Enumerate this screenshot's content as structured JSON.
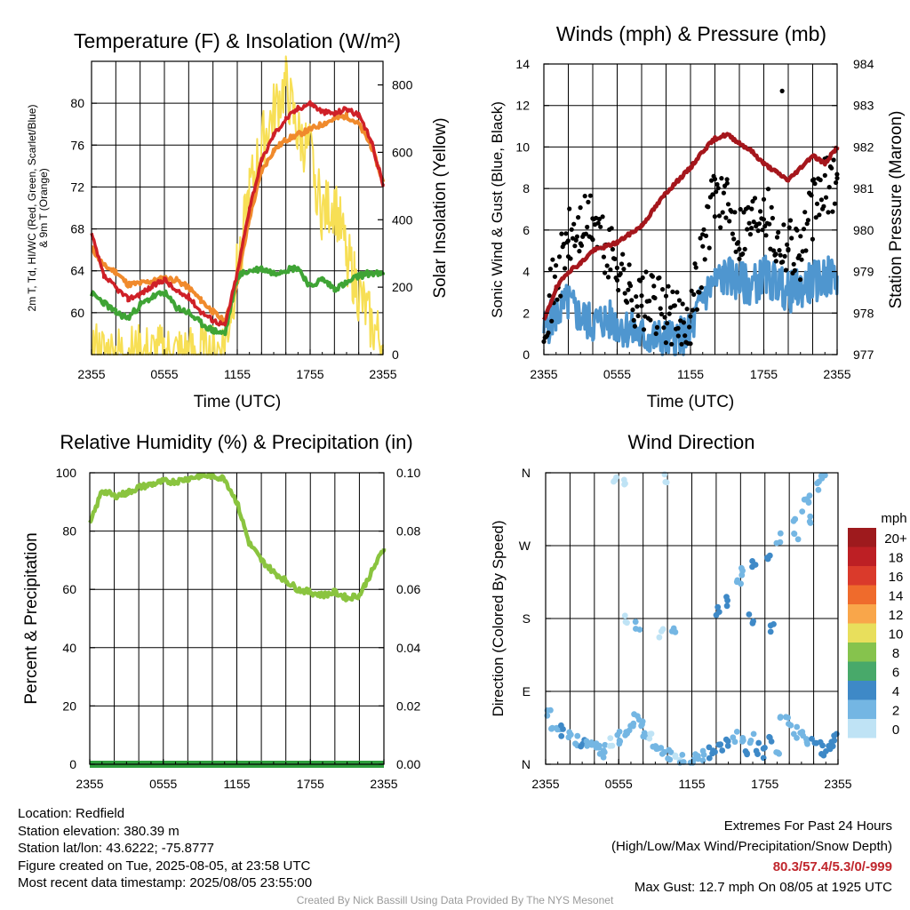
{
  "colors": {
    "temp": "#cf2027",
    "dew": "#3fa435",
    "temp9m": "#f08a2c",
    "solar": "#f7df55",
    "wind": "#4f96cf",
    "gust": "#000000",
    "pressure": "#a5161c",
    "rh": "#8ac43f",
    "precip": "#2f9e3d",
    "footer_extreme": "#c0272d"
  },
  "panels": {
    "temperature": {
      "title": "Temperature (F) & Insolation (W/m²)",
      "ylabel_left_line1": "2m T, Td, HI/WC (Red, Green, Scarlet/Blue)",
      "ylabel_left_line2": "& 9m T (Orange)",
      "ylabel_right": "Solar Insolation (Yellow)",
      "xlabel": "Time (UTC)"
    },
    "winds": {
      "title": "Winds (mph) & Pressure (mb)",
      "ylabel_left": "Sonic Wind & Gust (Blue, Black)",
      "ylabel_right": "Station Pressure (Maroon)",
      "xlabel": "Time (UTC)"
    },
    "humidity": {
      "title": "Relative Humidity (%) & Precipitation (in)",
      "ylabel_left": "Percent & Precipitation"
    },
    "direction": {
      "title": "Wind Direction",
      "ylabel_left": "Direction (Colored By Speed)",
      "legend_title": "mph"
    }
  },
  "chart_data": [
    {
      "type": "line",
      "id": "temperature",
      "x_ticks": [
        "2355",
        "0555",
        "1155",
        "1755",
        "2355"
      ],
      "x_hours": [
        0,
        6,
        12,
        18,
        24
      ],
      "ylim": [
        56,
        84
      ],
      "y_ticks": [
        60,
        64,
        68,
        72,
        76,
        80
      ],
      "y2lim": [
        0,
        870
      ],
      "y2_ticks": [
        0,
        200,
        400,
        600,
        800
      ],
      "series": [
        {
          "key": "temp",
          "x": [
            0,
            1,
            2,
            3,
            4,
            5,
            6,
            7,
            8,
            9,
            10,
            11,
            12,
            13,
            14,
            15,
            16,
            17,
            18,
            19,
            20,
            21,
            22,
            23,
            24
          ],
          "values": [
            67.5,
            63.5,
            62.4,
            61.3,
            61.8,
            62.5,
            63.2,
            62.0,
            61.5,
            60.1,
            59.3,
            58.8,
            63.8,
            70.0,
            74.5,
            77.0,
            78.5,
            79.5,
            80.0,
            79.2,
            79.0,
            79.5,
            78.8,
            76.5,
            72.3
          ]
        },
        {
          "key": "temp9m",
          "x": [
            0,
            1,
            2,
            3,
            4,
            5,
            6,
            7,
            8,
            9,
            10,
            11,
            12,
            13,
            14,
            15,
            16,
            17,
            18,
            19,
            20,
            21,
            22,
            23,
            24
          ],
          "values": [
            66.2,
            64.5,
            63.9,
            62.7,
            62.8,
            63.0,
            63.3,
            63.1,
            62.4,
            61.2,
            60.1,
            59.1,
            63.0,
            69.0,
            73.5,
            75.5,
            76.5,
            77.0,
            77.5,
            78.0,
            78.5,
            78.8,
            78.0,
            76.0,
            72.5
          ]
        },
        {
          "key": "dew",
          "x": [
            0,
            1,
            2,
            3,
            4,
            5,
            6,
            7,
            8,
            9,
            10,
            11,
            12,
            13,
            14,
            15,
            16,
            17,
            18,
            19,
            20,
            21,
            22,
            23,
            24
          ],
          "values": [
            61.8,
            61.0,
            60.0,
            59.5,
            60.7,
            61.5,
            61.9,
            60.5,
            60.0,
            59.0,
            58.3,
            58.0,
            63.5,
            64.0,
            64.2,
            63.8,
            64.1,
            64.3,
            62.5,
            63.2,
            62.3,
            62.8,
            63.5,
            63.8,
            63.6
          ]
        },
        {
          "key": "solar",
          "x": [
            0,
            1,
            2,
            3,
            4,
            5,
            6,
            7,
            8,
            9,
            10,
            11,
            12,
            13,
            14,
            15,
            16,
            17,
            18,
            19,
            20,
            21,
            22,
            23,
            24
          ],
          "values": [
            20,
            0,
            0,
            0,
            0,
            0,
            0,
            0,
            0,
            0,
            0,
            30,
            250,
            480,
            620,
            720,
            800,
            650,
            600,
            420,
            450,
            300,
            180,
            90,
            30
          ]
        }
      ]
    },
    {
      "type": "scatter",
      "id": "winds",
      "x_ticks": [
        "2355",
        "0555",
        "1155",
        "1755",
        "2355"
      ],
      "x_hours": [
        0,
        6,
        12,
        18,
        24
      ],
      "ylim": [
        0,
        14
      ],
      "y_ticks": [
        0,
        2,
        4,
        6,
        8,
        10,
        12,
        14
      ],
      "y2lim": [
        977,
        984
      ],
      "y2_ticks": [
        977,
        978,
        979,
        980,
        981,
        982,
        983,
        984
      ],
      "series": [
        {
          "key": "wind",
          "x": [
            0,
            1,
            2,
            3,
            4,
            5,
            6,
            7,
            8,
            9,
            10,
            11,
            12,
            13,
            14,
            15,
            16,
            17,
            18,
            19,
            20,
            21,
            22,
            23,
            24
          ],
          "values": [
            1.2,
            2.0,
            2.5,
            1.8,
            1.5,
            1.7,
            1.5,
            1.2,
            0.9,
            0.8,
            0.7,
            0.8,
            1.0,
            2.8,
            3.5,
            3.8,
            3.5,
            3.3,
            3.8,
            3.5,
            3.0,
            3.2,
            3.5,
            3.7,
            3.8
          ]
        },
        {
          "key": "gust",
          "x": [
            0,
            1,
            2,
            3,
            4,
            5,
            6,
            7,
            8,
            9,
            10,
            11,
            12,
            13,
            14,
            15,
            16,
            17,
            18,
            19,
            20,
            21,
            22,
            23,
            24
          ],
          "values": [
            2.0,
            3.5,
            5.5,
            6.0,
            6.5,
            5.0,
            4.5,
            3.0,
            2.5,
            2.5,
            2.0,
            1.5,
            2.0,
            5.0,
            8.0,
            7.0,
            6.0,
            6.5,
            7.5,
            5.5,
            5.5,
            5.0,
            7.0,
            8.0,
            8.5
          ]
        },
        {
          "key": "pressure",
          "x": [
            0,
            1,
            2,
            3,
            4,
            5,
            6,
            7,
            8,
            9,
            10,
            11,
            12,
            13,
            14,
            15,
            16,
            17,
            18,
            19,
            20,
            21,
            22,
            23,
            24
          ],
          "values": [
            977.8,
            978.6,
            979.0,
            979.2,
            979.5,
            979.6,
            979.7,
            979.9,
            980.1,
            980.5,
            980.9,
            981.2,
            981.5,
            981.9,
            982.2,
            982.3,
            982.1,
            981.9,
            981.6,
            981.4,
            981.2,
            981.5,
            981.8,
            981.6,
            982.0
          ]
        }
      ],
      "max_gust": 12.7
    },
    {
      "type": "line",
      "id": "humidity",
      "x_ticks": [
        "2355",
        "0555",
        "1155",
        "1755",
        "2355"
      ],
      "x_hours": [
        0,
        6,
        12,
        18,
        24
      ],
      "ylim": [
        0,
        100
      ],
      "y_ticks": [
        0,
        20,
        40,
        60,
        80,
        100
      ],
      "y2lim": [
        0,
        0.1
      ],
      "y2_ticks": [
        "0.00",
        "0.02",
        "0.04",
        "0.06",
        "0.08",
        "0.10"
      ],
      "series": [
        {
          "key": "rh",
          "x": [
            0,
            1,
            2,
            3,
            4,
            5,
            6,
            7,
            8,
            9,
            10,
            11,
            12,
            13,
            14,
            15,
            16,
            17,
            18,
            19,
            20,
            21,
            22,
            23,
            24
          ],
          "values": [
            82,
            94,
            92,
            93,
            95,
            96,
            97,
            97,
            98,
            99,
            99,
            98,
            90,
            76,
            70,
            66,
            63,
            60,
            59,
            58,
            59,
            57,
            58,
            66,
            74
          ]
        },
        {
          "key": "precip",
          "x": [
            0,
            24
          ],
          "values": [
            0,
            0
          ]
        }
      ]
    },
    {
      "type": "scatter",
      "id": "direction",
      "x_ticks": [
        "2355",
        "0555",
        "1155",
        "1755",
        "2355"
      ],
      "x_hours": [
        0,
        6,
        12,
        18,
        24
      ],
      "ylim": [
        0,
        360
      ],
      "y_ticks": [
        "N",
        "E",
        "S",
        "W",
        "N"
      ],
      "legend_labels": [
        "20+",
        "18",
        "16",
        "14",
        "12",
        "10",
        "8",
        "6",
        "4",
        "2",
        "0"
      ],
      "legend_colors": [
        "#9e1a1d",
        "#bd1f24",
        "#da3a2b",
        "#ef6b2c",
        "#f9a64a",
        "#e8df5c",
        "#86c34d",
        "#48a96a",
        "#3e89c7",
        "#74b6e3",
        "#bfe3f5"
      ],
      "points_x": [
        0.2,
        0.6,
        1,
        1.5,
        2,
        2.5,
        3,
        3.5,
        4,
        4.3,
        4.6,
        5,
        5.5,
        6,
        6.3,
        6.7,
        7,
        7.5,
        7.8,
        8.2,
        8.7,
        9,
        9.3,
        9.8,
        10.2,
        10.8,
        11.2,
        12,
        12.5,
        13,
        13.5,
        14,
        14.5,
        15,
        15.5,
        16,
        16.5,
        17,
        17.5,
        18,
        18.5,
        19,
        19.5,
        20,
        20.5,
        21,
        21.5,
        22,
        22.5,
        23,
        23.5,
        23.8,
        6.5,
        7.5,
        9.5,
        10.5,
        15.8,
        16.3,
        17.2,
        18.2,
        19.2,
        20.3,
        21.2,
        21.8,
        22.3,
        22.8,
        5.8,
        6.6,
        10,
        14.2,
        14.8,
        16.8,
        18.6,
        20.6,
        21.6
      ],
      "points_deg": [
        60,
        50,
        48,
        40,
        35,
        30,
        25,
        22,
        20,
        18,
        15,
        20,
        25,
        30,
        35,
        40,
        45,
        55,
        50,
        40,
        30,
        25,
        20,
        15,
        10,
        8,
        5,
        5,
        10,
        12,
        15,
        20,
        25,
        30,
        35,
        25,
        20,
        30,
        20,
        15,
        30,
        20,
        60,
        50,
        40,
        35,
        30,
        25,
        20,
        15,
        20,
        30,
        180,
        170,
        160,
        160,
        230,
        240,
        250,
        260,
        280,
        300,
        320,
        330,
        345,
        355,
        355,
        345,
        355,
        190,
        200,
        180,
        170,
        280,
        300
      ],
      "points_speed": [
        1,
        2,
        2,
        3,
        2,
        2,
        3,
        2,
        1,
        1,
        2,
        1,
        0,
        1,
        2,
        1,
        2,
        2,
        1,
        1,
        0,
        1,
        1,
        2,
        1,
        0,
        1,
        1,
        2,
        2,
        3,
        3,
        3,
        3,
        2,
        2,
        3,
        2,
        3,
        3,
        3,
        2,
        1,
        2,
        1,
        2,
        2,
        3,
        3,
        3,
        3,
        3,
        0,
        1,
        0,
        1,
        2,
        2,
        3,
        3,
        2,
        2,
        1,
        1,
        1,
        2,
        0,
        0,
        0,
        3,
        4,
        4,
        3,
        2,
        2
      ]
    }
  ],
  "footer": {
    "location": "Location: Redfield",
    "elevation": "Station elevation: 380.39 m",
    "latlon": "Station lat/lon: 43.6222; -75.8777",
    "created": "Figure created on Tue, 2025-08-05, at 23:58 UTC",
    "recent": "Most recent data timestamp: 2025/08/05 23:55:00",
    "extremes_title": "Extremes For Past 24 Hours",
    "extremes_subtitle": "(High/Low/Max Wind/Precipitation/Snow Depth)",
    "extremes_values": "80.3/57.4/5.3/0/-999",
    "max_gust": "Max Gust: 12.7 mph On 08/05 at 1925 UTC",
    "credit": "Created By Nick Bassill Using Data Provided By The NYS Mesonet"
  }
}
